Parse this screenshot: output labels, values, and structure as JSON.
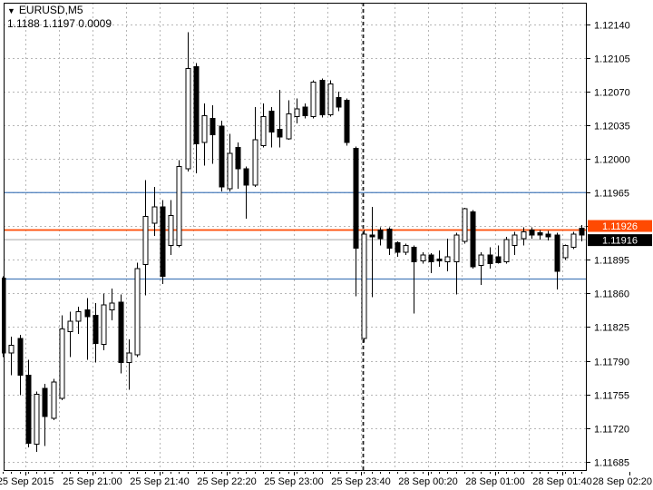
{
  "window": {
    "symbol_label": "EURUSD,M5",
    "quote_line": "1.1188 1.1197 0.0009",
    "dropdown_icon": "▼"
  },
  "price_scale_labels": [
    "1.12140",
    "1.12105",
    "1.12070",
    "1.12035",
    "1.12000",
    "1.11965",
    "1.11930",
    "1.11895",
    "1.11860",
    "1.11825",
    "1.11790",
    "1.11755",
    "1.11720",
    "1.11685"
  ],
  "time_scale_labels": [
    "25 Sep 2015",
    "25 Sep 21:00",
    "25 Sep 21:40",
    "25 Sep 22:20",
    "25 Sep 23:00",
    "25 Sep 23:40",
    "28 Sep 00:20",
    "28 Sep 01:00",
    "28 Sep 01:40",
    "28 Sep 02:20"
  ],
  "badges": {
    "ask_badge": {
      "text": "1.11926",
      "bg": "#ff4a02",
      "fg": "#ffffff"
    },
    "bid_badge": {
      "text": "1.11916",
      "bg": "#000000",
      "fg": "#ffffff"
    }
  },
  "chart_data": {
    "type": "candlestick",
    "title": "EURUSD,M5",
    "symbol": "EURUSD",
    "timeframe": "M5",
    "grid": true,
    "y_axis": {
      "top": 1.1214,
      "bottom": 1.11685,
      "step": 0.00035
    },
    "levels": {
      "resistance_line": {
        "price": 1.11965,
        "color": "#4a7ebc",
        "style": "solid"
      },
      "support_line": {
        "price": 1.11875,
        "color": "#4a7ebc",
        "style": "solid"
      },
      "ask_line": {
        "price": 1.11926,
        "color": "#ff4a02",
        "style": "solid"
      },
      "bid_line": {
        "price": 1.11916,
        "color": "#b9b9b9",
        "style": "solid"
      }
    },
    "period_separator_index": 43,
    "colors": {
      "bull": "#ffffff",
      "bear": "#000000",
      "outline": "#000000",
      "grid": "#b6b6b6",
      "separator": "#222222"
    },
    "columns": [
      "time",
      "open",
      "high",
      "low",
      "close"
    ],
    "candles": [
      [
        "25 Sep 20:05",
        1.11876,
        1.11878,
        1.11794,
        1.11798
      ],
      [
        "25 Sep 20:10",
        1.11798,
        1.11815,
        1.11775,
        1.11806
      ],
      [
        "25 Sep 20:15",
        1.11813,
        1.11817,
        1.11754,
        1.11775
      ],
      [
        "25 Sep 20:20",
        1.11775,
        1.11791,
        1.117,
        1.11704
      ],
      [
        "25 Sep 20:25",
        1.11703,
        1.11758,
        1.11695,
        1.11755
      ],
      [
        "25 Sep 20:30",
        1.11761,
        1.11766,
        1.11701,
        1.11732
      ],
      [
        "25 Sep 20:35",
        1.1173,
        1.11771,
        1.11728,
        1.11768
      ],
      [
        "25 Sep 20:40",
        1.11751,
        1.11837,
        1.11749,
        1.11823
      ],
      [
        "25 Sep 20:45",
        1.1182,
        1.11841,
        1.11794,
        1.11831
      ],
      [
        "25 Sep 20:50",
        1.11831,
        1.11846,
        1.11818,
        1.11841
      ],
      [
        "25 Sep 20:55",
        1.11843,
        1.11855,
        1.11791,
        1.11836
      ],
      [
        "25 Sep 21:00",
        1.11837,
        1.1185,
        1.11788,
        1.11808
      ],
      [
        "25 Sep 21:05",
        1.11807,
        1.1186,
        1.11801,
        1.11848
      ],
      [
        "25 Sep 21:10",
        1.11843,
        1.11865,
        1.11832,
        1.1185
      ],
      [
        "25 Sep 21:15",
        1.11851,
        1.11859,
        1.11777,
        1.11788
      ],
      [
        "25 Sep 21:20",
        1.11788,
        1.11812,
        1.1176,
        1.11798
      ],
      [
        "25 Sep 21:25",
        1.11796,
        1.11892,
        1.11794,
        1.11886
      ],
      [
        "25 Sep 21:30",
        1.1189,
        1.11978,
        1.11858,
        1.1194
      ],
      [
        "25 Sep 21:35",
        1.11933,
        1.11971,
        1.1192,
        1.1195
      ],
      [
        "25 Sep 21:40",
        1.1195,
        1.11957,
        1.1187,
        1.11878
      ],
      [
        "25 Sep 21:45",
        1.1191,
        1.11957,
        1.119,
        1.11941
      ],
      [
        "25 Sep 21:50",
        1.1191,
        1.11999,
        1.11908,
        1.11992
      ],
      [
        "25 Sep 21:55",
        1.1199,
        1.12132,
        1.11987,
        1.12094
      ],
      [
        "25 Sep 22:00",
        1.12096,
        1.121,
        1.11985,
        1.12016
      ],
      [
        "25 Sep 22:05",
        1.12017,
        1.12058,
        1.11993,
        1.12045
      ],
      [
        "25 Sep 22:10",
        1.12042,
        1.12056,
        1.11995,
        1.12025
      ],
      [
        "25 Sep 22:15",
        1.12034,
        1.1204,
        1.11966,
        1.11971
      ],
      [
        "25 Sep 22:20",
        1.11969,
        1.12026,
        1.11966,
        1.12006
      ],
      [
        "25 Sep 22:25",
        1.12012,
        1.12017,
        1.11969,
        1.1199
      ],
      [
        "25 Sep 22:30",
        1.1199,
        1.11992,
        1.11938,
        1.11973
      ],
      [
        "25 Sep 22:35",
        1.11973,
        1.12054,
        1.11971,
        1.1202
      ],
      [
        "25 Sep 22:40",
        1.12014,
        1.12058,
        1.12012,
        1.12044
      ],
      [
        "25 Sep 22:45",
        1.1205,
        1.12054,
        1.12012,
        1.12028
      ],
      [
        "25 Sep 22:50",
        1.12031,
        1.12072,
        1.12012,
        1.12023
      ],
      [
        "25 Sep 22:55",
        1.12021,
        1.12061,
        1.1202,
        1.12047
      ],
      [
        "25 Sep 23:00",
        1.12044,
        1.12063,
        1.12037,
        1.12052
      ],
      [
        "25 Sep 23:05",
        1.12054,
        1.12058,
        1.12042,
        1.12045
      ],
      [
        "25 Sep 23:10",
        1.12044,
        1.12082,
        1.12042,
        1.1208
      ],
      [
        "25 Sep 23:15",
        1.12082,
        1.12084,
        1.12043,
        1.12046
      ],
      [
        "25 Sep 23:20",
        1.12046,
        1.12082,
        1.12044,
        1.12078
      ],
      [
        "25 Sep 23:25",
        1.12064,
        1.1207,
        1.1205,
        1.12054
      ],
      [
        "25 Sep 23:30",
        1.12061,
        1.12063,
        1.12014,
        1.12017
      ],
      [
        "25 Sep 23:35",
        1.12011,
        1.12013,
        1.11857,
        1.11907
      ],
      [
        "25 Sep 23:40",
        1.11813,
        1.11926,
        1.11809,
        1.11922
      ],
      [
        "25 Sep 23:45",
        1.11921,
        1.1195,
        1.11856,
        1.11919
      ],
      [
        "25 Sep 23:50",
        1.11926,
        1.11929,
        1.1191,
        1.11917
      ],
      [
        "25 Sep 23:55",
        1.11927,
        1.11929,
        1.119,
        1.11907
      ],
      [
        "28 Sep 00:00",
        1.11913,
        1.11914,
        1.11898,
        1.11903
      ],
      [
        "28 Sep 00:05",
        1.11903,
        1.11912,
        1.119,
        1.1191
      ],
      [
        "28 Sep 00:10",
        1.11908,
        1.1191,
        1.11839,
        1.11893
      ],
      [
        "28 Sep 00:15",
        1.11894,
        1.11903,
        1.11891,
        1.119
      ],
      [
        "28 Sep 00:20",
        1.119,
        1.11902,
        1.11881,
        1.11893
      ],
      [
        "28 Sep 00:25",
        1.11896,
        1.11905,
        1.11888,
        1.11894
      ],
      [
        "28 Sep 00:30",
        1.11893,
        1.11917,
        1.11883,
        1.11898
      ],
      [
        "28 Sep 00:35",
        1.11893,
        1.11923,
        1.11859,
        1.11921
      ],
      [
        "28 Sep 00:40",
        1.11914,
        1.11949,
        1.11912,
        1.11948
      ],
      [
        "28 Sep 00:45",
        1.11945,
        1.11947,
        1.11886,
        1.11888
      ],
      [
        "28 Sep 00:50",
        1.11889,
        1.11903,
        1.11869,
        1.119
      ],
      [
        "28 Sep 00:55",
        1.119,
        1.11908,
        1.11886,
        1.11891
      ],
      [
        "28 Sep 01:00",
        1.11898,
        1.1191,
        1.11891,
        1.11892
      ],
      [
        "28 Sep 01:05",
        1.11893,
        1.11919,
        1.11891,
        1.11916
      ],
      [
        "28 Sep 01:10",
        1.1191,
        1.11924,
        1.119,
        1.11921
      ],
      [
        "28 Sep 01:15",
        1.11917,
        1.11929,
        1.1191,
        1.11924
      ],
      [
        "28 Sep 01:20",
        1.11926,
        1.11929,
        1.11917,
        1.11921
      ],
      [
        "28 Sep 01:25",
        1.11923,
        1.11926,
        1.11916,
        1.11921
      ],
      [
        "28 Sep 01:30",
        1.11922,
        1.11925,
        1.11915,
        1.11919
      ],
      [
        "28 Sep 01:35",
        1.11921,
        1.11923,
        1.11864,
        1.11883
      ],
      [
        "28 Sep 01:40",
        1.11897,
        1.11911,
        1.11895,
        1.1191
      ],
      [
        "28 Sep 01:45",
        1.11908,
        1.11924,
        1.11906,
        1.11922
      ],
      [
        "28 Sep 01:50",
        1.11928,
        1.11931,
        1.11914,
        1.11921
      ]
    ]
  }
}
